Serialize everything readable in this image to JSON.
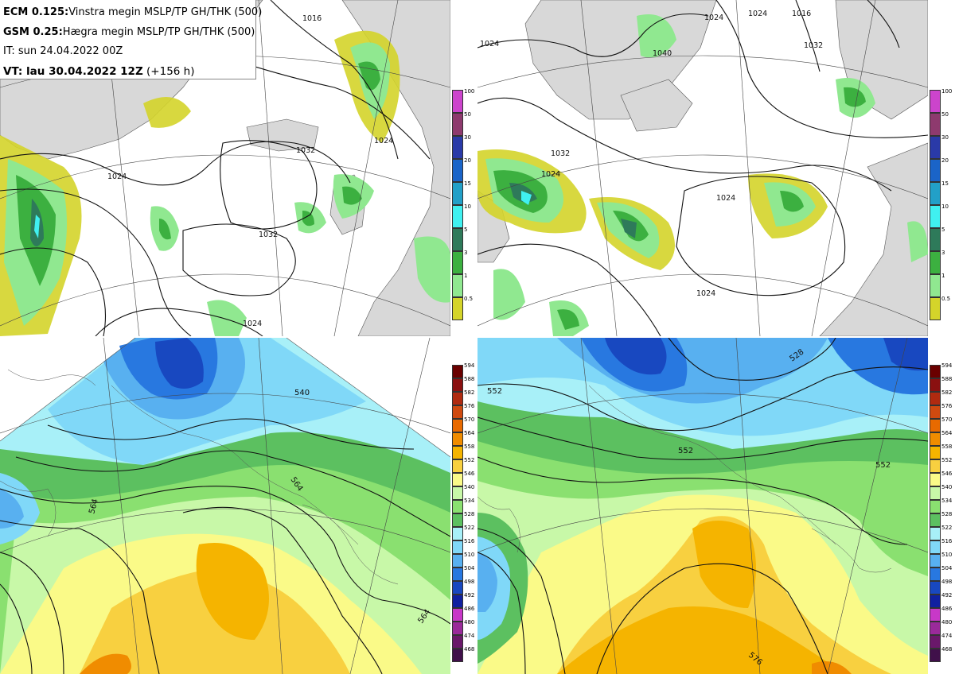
{
  "header": {
    "ecm_model": "ECM 0.125:",
    "ecm_desc": "Vinstra megin MSLP/TP GH/THK (500)",
    "gsm_model": "GSM 0.25:",
    "gsm_desc": "Hægra megin MSLP/TP GH/THK (500)",
    "it": "IT: sun 24.04.2022 00Z",
    "vt_main": "VT: lau 30.04.2022 12Z",
    "vt_offset": " (+156 h)"
  },
  "precip_scale": {
    "labels": [
      "100",
      "50",
      "30",
      "20",
      "15",
      "10",
      "5",
      "3",
      "1",
      "0.5"
    ],
    "colors": [
      "#cc44cc",
      "#8e3a6e",
      "#2a3aa8",
      "#1a64c8",
      "#22a0c8",
      "#40f0f0",
      "#2e7a5a",
      "#3cb040",
      "#90e890",
      "#d4d42a"
    ]
  },
  "thickness_scale": {
    "labels": [
      "594",
      "588",
      "582",
      "576",
      "570",
      "564",
      "558",
      "552",
      "546",
      "540",
      "534",
      "528",
      "522",
      "516",
      "510",
      "504",
      "498",
      "492",
      "486",
      "480",
      "474",
      "468"
    ],
    "colors": [
      "#6a0000",
      "#8a1010",
      "#b02a10",
      "#d04a10",
      "#e86a00",
      "#f08c00",
      "#f5b400",
      "#f8d040",
      "#fafa88",
      "#c8f8a8",
      "#8ae070",
      "#5cc060",
      "#a8f0f8",
      "#80d8f8",
      "#58b0f0",
      "#2878e0",
      "#1848c0",
      "#1020a0",
      "#c838c8",
      "#9a2a9a",
      "#6a186a",
      "#40104a"
    ]
  },
  "contour_labels": {
    "top_left": [
      "1016",
      "1032",
      "1024",
      "1032",
      "1024",
      "1024"
    ],
    "top_right": [
      "1024",
      "1032",
      "1040",
      "1024",
      "1016",
      "1024",
      "1032",
      "1024",
      "1024",
      "1024"
    ],
    "bottom_left": [
      "540",
      "564",
      "564",
      "564"
    ],
    "bottom_right": [
      "528",
      "552",
      "552",
      "552",
      "576"
    ]
  }
}
